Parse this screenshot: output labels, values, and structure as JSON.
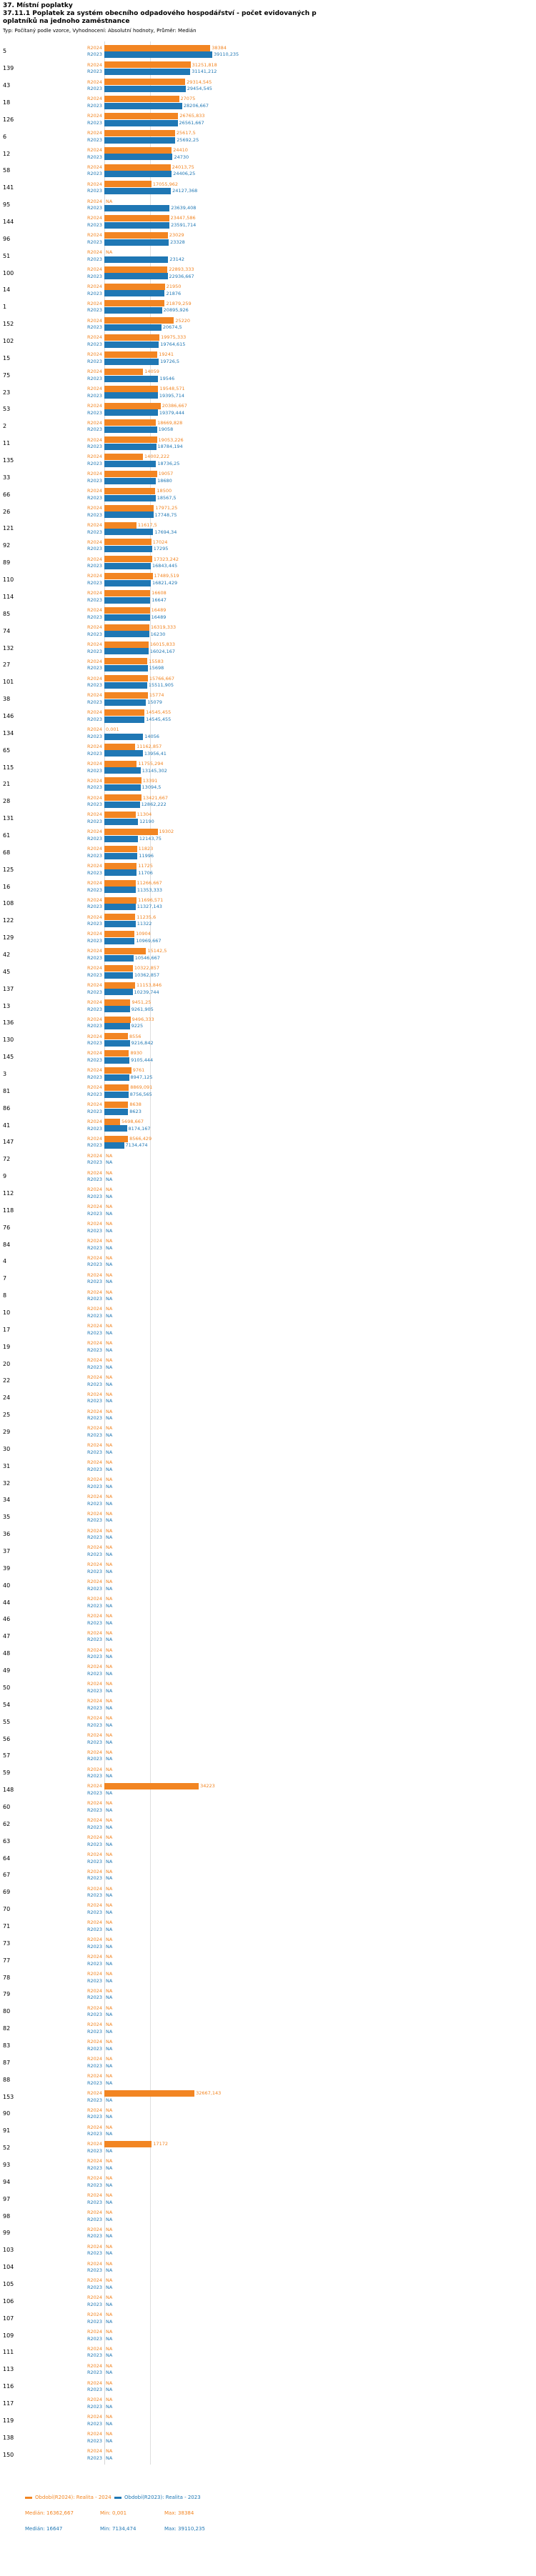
{
  "header": {
    "line1": "37. Místní poplatky",
    "line2": "37.11.1 Poplatek za systém obecního odpadového hospodářství - počet evidovaných p",
    "line3": "oplatníků na jednoho zaměstnance",
    "meta": "Typ: Počítaný podle vzorce, Vyhodnocení: Absolutní hodnoty, Průměr: Medián"
  },
  "legend": {
    "r2024": {
      "label": "Období(R2024): Realita - 2024",
      "median": "Medián: 16362,667",
      "min": "Min: 0,001",
      "max": "Max: 38384"
    },
    "r2023": {
      "label": "Období(R2023): Realita - 2023",
      "median": "Medián: 16647",
      "min": "Min: 7134,474",
      "max": "Max: 39110,235"
    }
  },
  "chart_data": {
    "type": "bar",
    "orientation": "horizontal",
    "title": "37.11.1 Poplatek za systém obecního odpadového hospodářství - počet evidovaných poplatníků na jednoho zaměstnance",
    "x_axis": {
      "min": 0,
      "max": 40000,
      "median_gridline": 16500
    },
    "series_row_labels": {
      "r2024": "R2024",
      "r2023": "R2023"
    },
    "series": [
      {
        "key": "r2024",
        "name": "Období(R2024): Realita - 2024",
        "color": "#f28522",
        "median": 16362.667,
        "min": 0.001,
        "max": 38384
      },
      {
        "key": "r2023",
        "name": "Období(R2023): Realita - 2023",
        "color": "#1f77b4",
        "median": 16647,
        "min": 7134.474,
        "max": 39110.235
      }
    ],
    "na_text": "NA",
    "groups": [
      {
        "id": "5",
        "r2024": "38384",
        "r2023": "39110,235"
      },
      {
        "id": "139",
        "r2024": "31251,818",
        "r2023": "31141,212"
      },
      {
        "id": "43",
        "r2024": "29314,545",
        "r2023": "29454,545"
      },
      {
        "id": "18",
        "r2024": "27075",
        "r2023": "28206,667"
      },
      {
        "id": "126",
        "r2024": "26765,833",
        "r2023": "26561,667"
      },
      {
        "id": "6",
        "r2024": "25617,5",
        "r2023": "25692,25"
      },
      {
        "id": "12",
        "r2024": "24410",
        "r2023": "24730"
      },
      {
        "id": "58",
        "r2024": "24013,75",
        "r2023": "24406,25"
      },
      {
        "id": "141",
        "r2024": "17055,962",
        "r2023": "24127,368"
      },
      {
        "id": "95",
        "r2024": "NA",
        "r2023": "23639,408"
      },
      {
        "id": "144",
        "r2024": "23447,586",
        "r2023": "23591,714"
      },
      {
        "id": "96",
        "r2024": "23029",
        "r2023": "23328"
      },
      {
        "id": "51",
        "r2024": "NA",
        "r2023": "23142"
      },
      {
        "id": "100",
        "r2024": "22893,333",
        "r2023": "22936,667"
      },
      {
        "id": "14",
        "r2024": "21950",
        "r2023": "21876"
      },
      {
        "id": "1",
        "r2024": "21879,259",
        "r2023": "20895,926"
      },
      {
        "id": "152",
        "r2024": "25220",
        "r2023": "20674,5"
      },
      {
        "id": "102",
        "r2024": "19975,333",
        "r2023": "19764,615"
      },
      {
        "id": "15",
        "r2024": "19241",
        "r2023": "19726,5"
      },
      {
        "id": "75",
        "r2024": "14059",
        "r2023": "19546"
      },
      {
        "id": "23",
        "r2024": "19548,571",
        "r2023": "19395,714"
      },
      {
        "id": "53",
        "r2024": "20386,667",
        "r2023": "19379,444"
      },
      {
        "id": "2",
        "r2024": "18669,828",
        "r2023": "19058"
      },
      {
        "id": "11",
        "r2024": "19053,226",
        "r2023": "18784,194"
      },
      {
        "id": "135",
        "r2024": "14002,222",
        "r2023": "18736,25"
      },
      {
        "id": "33",
        "r2024": "19057",
        "r2023": "18680"
      },
      {
        "id": "66",
        "r2024": "18500",
        "r2023": "18567,5"
      },
      {
        "id": "26",
        "r2024": "17971,25",
        "r2023": "17748,75"
      },
      {
        "id": "121",
        "r2024": "11617,5",
        "r2023": "17694,34"
      },
      {
        "id": "92",
        "r2024": "17024",
        "r2023": "17295"
      },
      {
        "id": "89",
        "r2024": "17323,242",
        "r2023": "16843,445"
      },
      {
        "id": "110",
        "r2024": "17489,519",
        "r2023": "16821,429"
      },
      {
        "id": "114",
        "r2024": "16608",
        "r2023": "16647"
      },
      {
        "id": "85",
        "r2024": "16489",
        "r2023": "16489"
      },
      {
        "id": "74",
        "r2024": "16319,333",
        "r2023": "16230"
      },
      {
        "id": "132",
        "r2024": "16015,833",
        "r2023": "16024,167"
      },
      {
        "id": "27",
        "r2024": "15583",
        "r2023": "15698"
      },
      {
        "id": "101",
        "r2024": "15766,667",
        "r2023": "15511,905"
      },
      {
        "id": "38",
        "r2024": "15774",
        "r2023": "15079"
      },
      {
        "id": "146",
        "r2024": "14545,455",
        "r2023": "14545,455"
      },
      {
        "id": "134",
        "r2024": "0,001",
        "r2023": "14056"
      },
      {
        "id": "65",
        "r2024": "11162,857",
        "r2023": "13956,41"
      },
      {
        "id": "115",
        "r2024": "11755,294",
        "r2023": "13145,302"
      },
      {
        "id": "21",
        "r2024": "13391",
        "r2023": "13094,5"
      },
      {
        "id": "28",
        "r2024": "13421,667",
        "r2023": "12862,222"
      },
      {
        "id": "131",
        "r2024": "11304",
        "r2023": "12190"
      },
      {
        "id": "61",
        "r2024": "19302",
        "r2023": "12143,75"
      },
      {
        "id": "68",
        "r2024": "11823",
        "r2023": "11996"
      },
      {
        "id": "125",
        "r2024": "11725",
        "r2023": "11706"
      },
      {
        "id": "16",
        "r2024": "11266,667",
        "r2023": "11353,333"
      },
      {
        "id": "108",
        "r2024": "11696,571",
        "r2023": "11327,143"
      },
      {
        "id": "122",
        "r2024": "11235,6",
        "r2023": "11322"
      },
      {
        "id": "129",
        "r2024": "10904",
        "r2023": "10969,667"
      },
      {
        "id": "42",
        "r2024": "15142,5",
        "r2023": "10546,667"
      },
      {
        "id": "45",
        "r2024": "10322,857",
        "r2023": "10362,857"
      },
      {
        "id": "137",
        "r2024": "11153,846",
        "r2023": "10239,744"
      },
      {
        "id": "13",
        "r2024": "9451,25",
        "r2023": "9261,905"
      },
      {
        "id": "136",
        "r2024": "9496,333",
        "r2023": "9225"
      },
      {
        "id": "130",
        "r2024": "8556",
        "r2023": "9216,842"
      },
      {
        "id": "145",
        "r2024": "8930",
        "r2023": "9105,444"
      },
      {
        "id": "3",
        "r2024": "9761",
        "r2023": "8947,125"
      },
      {
        "id": "81",
        "r2024": "8869,091",
        "r2023": "8756,565"
      },
      {
        "id": "86",
        "r2024": "8638",
        "r2023": "8623"
      },
      {
        "id": "41",
        "r2024": "5698,667",
        "r2023": "8174,167"
      },
      {
        "id": "147",
        "r2024": "8566,429",
        "r2023": "7134,474"
      },
      {
        "id": "72",
        "r2024": "NA",
        "r2023": "NA"
      },
      {
        "id": "9",
        "r2024": "NA",
        "r2023": "NA"
      },
      {
        "id": "112",
        "r2024": "NA",
        "r2023": "NA"
      },
      {
        "id": "118",
        "r2024": "NA",
        "r2023": "NA"
      },
      {
        "id": "76",
        "r2024": "NA",
        "r2023": "NA"
      },
      {
        "id": "84",
        "r2024": "NA",
        "r2023": "NA"
      },
      {
        "id": "4",
        "r2024": "NA",
        "r2023": "NA"
      },
      {
        "id": "7",
        "r2024": "NA",
        "r2023": "NA"
      },
      {
        "id": "8",
        "r2024": "NA",
        "r2023": "NA"
      },
      {
        "id": "10",
        "r2024": "NA",
        "r2023": "NA"
      },
      {
        "id": "17",
        "r2024": "NA",
        "r2023": "NA"
      },
      {
        "id": "19",
        "r2024": "NA",
        "r2023": "NA"
      },
      {
        "id": "20",
        "r2024": "NA",
        "r2023": "NA"
      },
      {
        "id": "22",
        "r2024": "NA",
        "r2023": "NA"
      },
      {
        "id": "24",
        "r2024": "NA",
        "r2023": "NA"
      },
      {
        "id": "25",
        "r2024": "NA",
        "r2023": "NA"
      },
      {
        "id": "29",
        "r2024": "NA",
        "r2023": "NA"
      },
      {
        "id": "30",
        "r2024": "NA",
        "r2023": "NA"
      },
      {
        "id": "31",
        "r2024": "NA",
        "r2023": "NA"
      },
      {
        "id": "32",
        "r2024": "NA",
        "r2023": "NA"
      },
      {
        "id": "34",
        "r2024": "NA",
        "r2023": "NA"
      },
      {
        "id": "35",
        "r2024": "NA",
        "r2023": "NA"
      },
      {
        "id": "36",
        "r2024": "NA",
        "r2023": "NA"
      },
      {
        "id": "37",
        "r2024": "NA",
        "r2023": "NA"
      },
      {
        "id": "39",
        "r2024": "NA",
        "r2023": "NA"
      },
      {
        "id": "40",
        "r2024": "NA",
        "r2023": "NA"
      },
      {
        "id": "44",
        "r2024": "NA",
        "r2023": "NA"
      },
      {
        "id": "46",
        "r2024": "NA",
        "r2023": "NA"
      },
      {
        "id": "47",
        "r2024": "NA",
        "r2023": "NA"
      },
      {
        "id": "48",
        "r2024": "NA",
        "r2023": "NA"
      },
      {
        "id": "49",
        "r2024": "NA",
        "r2023": "NA"
      },
      {
        "id": "50",
        "r2024": "NA",
        "r2023": "NA"
      },
      {
        "id": "54",
        "r2024": "NA",
        "r2023": "NA"
      },
      {
        "id": "55",
        "r2024": "NA",
        "r2023": "NA"
      },
      {
        "id": "56",
        "r2024": "NA",
        "r2023": "NA"
      },
      {
        "id": "57",
        "r2024": "NA",
        "r2023": "NA"
      },
      {
        "id": "59",
        "r2024": "NA",
        "r2023": "NA"
      },
      {
        "id": "148",
        "r2024": "34223",
        "r2023": "NA"
      },
      {
        "id": "60",
        "r2024": "NA",
        "r2023": "NA"
      },
      {
        "id": "62",
        "r2024": "NA",
        "r2023": "NA"
      },
      {
        "id": "63",
        "r2024": "NA",
        "r2023": "NA"
      },
      {
        "id": "64",
        "r2024": "NA",
        "r2023": "NA"
      },
      {
        "id": "67",
        "r2024": "NA",
        "r2023": "NA"
      },
      {
        "id": "69",
        "r2024": "NA",
        "r2023": "NA"
      },
      {
        "id": "70",
        "r2024": "NA",
        "r2023": "NA"
      },
      {
        "id": "71",
        "r2024": "NA",
        "r2023": "NA"
      },
      {
        "id": "73",
        "r2024": "NA",
        "r2023": "NA"
      },
      {
        "id": "77",
        "r2024": "NA",
        "r2023": "NA"
      },
      {
        "id": "78",
        "r2024": "NA",
        "r2023": "NA"
      },
      {
        "id": "79",
        "r2024": "NA",
        "r2023": "NA"
      },
      {
        "id": "80",
        "r2024": "NA",
        "r2023": "NA"
      },
      {
        "id": "82",
        "r2024": "NA",
        "r2023": "NA"
      },
      {
        "id": "83",
        "r2024": "NA",
        "r2023": "NA"
      },
      {
        "id": "87",
        "r2024": "NA",
        "r2023": "NA"
      },
      {
        "id": "88",
        "r2024": "NA",
        "r2023": "NA"
      },
      {
        "id": "153",
        "r2024": "32667,143",
        "r2023": "NA"
      },
      {
        "id": "90",
        "r2024": "NA",
        "r2023": "NA"
      },
      {
        "id": "91",
        "r2024": "NA",
        "r2023": "NA"
      },
      {
        "id": "52",
        "r2024": "17172",
        "r2023": "NA"
      },
      {
        "id": "93",
        "r2024": "NA",
        "r2023": "NA"
      },
      {
        "id": "94",
        "r2024": "NA",
        "r2023": "NA"
      },
      {
        "id": "97",
        "r2024": "NA",
        "r2023": "NA"
      },
      {
        "id": "98",
        "r2024": "NA",
        "r2023": "NA"
      },
      {
        "id": "99",
        "r2024": "NA",
        "r2023": "NA"
      },
      {
        "id": "103",
        "r2024": "NA",
        "r2023": "NA"
      },
      {
        "id": "104",
        "r2024": "NA",
        "r2023": "NA"
      },
      {
        "id": "105",
        "r2024": "NA",
        "r2023": "NA"
      },
      {
        "id": "106",
        "r2024": "NA",
        "r2023": "NA"
      },
      {
        "id": "107",
        "r2024": "NA",
        "r2023": "NA"
      },
      {
        "id": "109",
        "r2024": "NA",
        "r2023": "NA"
      },
      {
        "id": "111",
        "r2024": "NA",
        "r2023": "NA"
      },
      {
        "id": "113",
        "r2024": "NA",
        "r2023": "NA"
      },
      {
        "id": "116",
        "r2024": "NA",
        "r2023": "NA"
      },
      {
        "id": "117",
        "r2024": "NA",
        "r2023": "NA"
      },
      {
        "id": "119",
        "r2024": "NA",
        "r2023": "NA"
      },
      {
        "id": "138",
        "r2024": "NA",
        "r2023": "NA"
      },
      {
        "id": "150",
        "r2024": "NA",
        "r2023": "NA"
      }
    ]
  }
}
